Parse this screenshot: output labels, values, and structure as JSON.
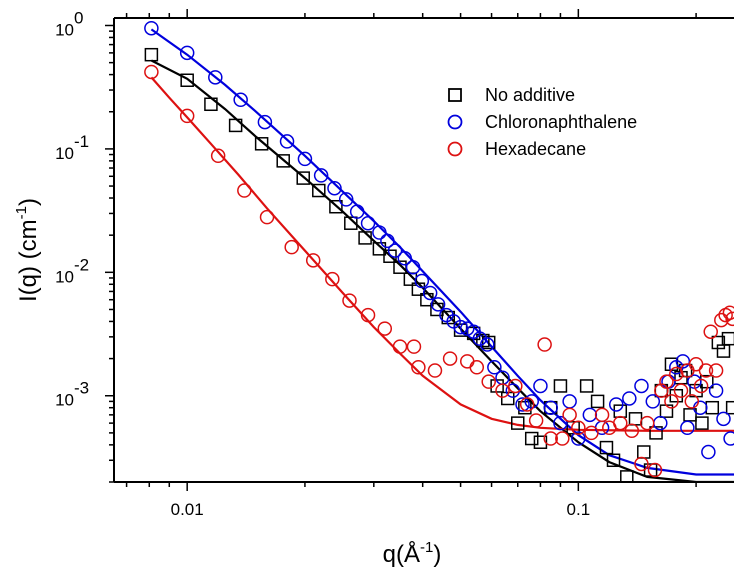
{
  "chart_data": {
    "type": "scatter",
    "title": "",
    "xlabel_base": "q(Å",
    "xlabel_sup": "-1",
    "xlabel_end": ")",
    "ylabel_base": "I(q) (cm",
    "ylabel_sup": "-1",
    "ylabel_end": ")",
    "x_scale": "log",
    "y_scale": "log",
    "xlim": [
      0.0065,
      0.25
    ],
    "ylim": [
      0.0002,
      1.15
    ],
    "x_ticks": [
      {
        "value": 0.01,
        "label": "0.01"
      },
      {
        "value": 0.1,
        "label": "0.1"
      }
    ],
    "y_ticks": [
      {
        "value": 0.001,
        "base": "10",
        "exp": "-3"
      },
      {
        "value": 0.01,
        "base": "10",
        "exp": "-2"
      },
      {
        "value": 0.1,
        "base": "10",
        "exp": "-1"
      },
      {
        "value": 1,
        "base": "10",
        "exp": "0"
      }
    ],
    "grid": false,
    "legend_position": "top-right",
    "series": [
      {
        "name": "No additive",
        "color": "#000000",
        "marker": "square",
        "points": [
          [
            0.0081,
            0.58
          ],
          [
            0.01,
            0.36
          ],
          [
            0.0115,
            0.23
          ],
          [
            0.0133,
            0.155
          ],
          [
            0.0155,
            0.11
          ],
          [
            0.0176,
            0.08
          ],
          [
            0.0198,
            0.058
          ],
          [
            0.0217,
            0.046
          ],
          [
            0.024,
            0.034
          ],
          [
            0.0262,
            0.025
          ],
          [
            0.0285,
            0.019
          ],
          [
            0.031,
            0.0155
          ],
          [
            0.033,
            0.0135
          ],
          [
            0.035,
            0.011
          ],
          [
            0.0372,
            0.0088
          ],
          [
            0.039,
            0.0073
          ],
          [
            0.041,
            0.006
          ],
          [
            0.0435,
            0.005
          ],
          [
            0.0465,
            0.0043
          ],
          [
            0.05,
            0.0034
          ],
          [
            0.054,
            0.0032
          ],
          [
            0.057,
            0.0028
          ],
          [
            0.059,
            0.0027
          ],
          [
            0.062,
            0.0012
          ],
          [
            0.066,
            0.00095
          ],
          [
            0.07,
            0.0006
          ],
          [
            0.073,
            0.0008
          ],
          [
            0.076,
            0.00045
          ],
          [
            0.08,
            0.00042
          ],
          [
            0.085,
            0.0008
          ],
          [
            0.09,
            0.0012
          ],
          [
            0.097,
            0.00055
          ],
          [
            0.105,
            0.0012
          ],
          [
            0.112,
            0.0009
          ],
          [
            0.118,
            0.00038
          ],
          [
            0.123,
            0.0003
          ],
          [
            0.128,
            0.00075
          ],
          [
            0.133,
            0.00022
          ],
          [
            0.14,
            0.00065
          ],
          [
            0.147,
            0.00035
          ],
          [
            0.153,
            0.00025
          ],
          [
            0.158,
            0.0005
          ],
          [
            0.163,
            0.0011
          ],
          [
            0.168,
            0.00075
          ],
          [
            0.173,
            0.0018
          ],
          [
            0.178,
            0.001
          ],
          [
            0.183,
            0.0014
          ],
          [
            0.188,
            0.0016
          ],
          [
            0.193,
            0.0007
          ],
          [
            0.2,
            0.0011
          ],
          [
            0.207,
            0.0006
          ],
          [
            0.213,
            0.0013
          ],
          [
            0.22,
            0.0008
          ],
          [
            0.228,
            0.0027
          ],
          [
            0.235,
            0.0023
          ],
          [
            0.242,
            0.0029
          ],
          [
            0.248,
            0.0008
          ]
        ],
        "fit": [
          [
            0.0081,
            0.52
          ],
          [
            0.01,
            0.37
          ],
          [
            0.0125,
            0.21
          ],
          [
            0.015,
            0.125
          ],
          [
            0.02,
            0.058
          ],
          [
            0.025,
            0.031
          ],
          [
            0.03,
            0.018
          ],
          [
            0.035,
            0.0115
          ],
          [
            0.04,
            0.0075
          ],
          [
            0.05,
            0.0035
          ],
          [
            0.06,
            0.0019
          ],
          [
            0.07,
            0.00115
          ],
          [
            0.08,
            0.00075
          ],
          [
            0.1,
            0.00042
          ],
          [
            0.12,
            0.00029
          ],
          [
            0.15,
            0.00022
          ],
          [
            0.2,
            0.0002
          ],
          [
            0.25,
            0.0002
          ]
        ]
      },
      {
        "name": "Chloronaphthalene",
        "color": "#0000dd",
        "marker": "circle",
        "points": [
          [
            0.0081,
            0.95
          ],
          [
            0.01,
            0.6
          ],
          [
            0.0118,
            0.38
          ],
          [
            0.0137,
            0.25
          ],
          [
            0.0158,
            0.165
          ],
          [
            0.018,
            0.115
          ],
          [
            0.02,
            0.083
          ],
          [
            0.022,
            0.061
          ],
          [
            0.0238,
            0.048
          ],
          [
            0.0255,
            0.039
          ],
          [
            0.0272,
            0.031
          ],
          [
            0.029,
            0.025
          ],
          [
            0.031,
            0.021
          ],
          [
            0.0325,
            0.018
          ],
          [
            0.034,
            0.015
          ],
          [
            0.036,
            0.013
          ],
          [
            0.0378,
            0.011
          ],
          [
            0.0398,
            0.0085
          ],
          [
            0.0418,
            0.0068
          ],
          [
            0.0438,
            0.0055
          ],
          [
            0.046,
            0.0045
          ],
          [
            0.048,
            0.004
          ],
          [
            0.05,
            0.0036
          ],
          [
            0.052,
            0.0035
          ],
          [
            0.054,
            0.0033
          ],
          [
            0.056,
            0.0029
          ],
          [
            0.0585,
            0.0026
          ],
          [
            0.061,
            0.0017
          ],
          [
            0.064,
            0.0014
          ],
          [
            0.068,
            0.0011
          ],
          [
            0.072,
            0.00085
          ],
          [
            0.076,
            0.0009
          ],
          [
            0.08,
            0.0012
          ],
          [
            0.085,
            0.0008
          ],
          [
            0.09,
            0.0006
          ],
          [
            0.095,
            0.0009
          ],
          [
            0.1,
            0.00045
          ],
          [
            0.107,
            0.0007
          ],
          [
            0.115,
            0.00055
          ],
          [
            0.125,
            0.00085
          ],
          [
            0.135,
            0.00095
          ],
          [
            0.145,
            0.0012
          ],
          [
            0.155,
            0.0009
          ],
          [
            0.162,
            0.0006
          ],
          [
            0.17,
            0.0013
          ],
          [
            0.178,
            0.0017
          ],
          [
            0.185,
            0.0019
          ],
          [
            0.19,
            0.00055
          ],
          [
            0.198,
            0.0013
          ],
          [
            0.205,
            0.0008
          ],
          [
            0.215,
            0.00035
          ],
          [
            0.225,
            0.0011
          ],
          [
            0.235,
            0.00065
          ],
          [
            0.245,
            0.00045
          ]
        ],
        "fit": [
          [
            0.0081,
            0.93
          ],
          [
            0.01,
            0.58
          ],
          [
            0.0125,
            0.33
          ],
          [
            0.015,
            0.2
          ],
          [
            0.02,
            0.088
          ],
          [
            0.025,
            0.045
          ],
          [
            0.03,
            0.026
          ],
          [
            0.035,
            0.016
          ],
          [
            0.04,
            0.0102
          ],
          [
            0.05,
            0.0048
          ],
          [
            0.06,
            0.0025
          ],
          [
            0.07,
            0.00145
          ],
          [
            0.08,
            0.00092
          ],
          [
            0.1,
            0.00048
          ],
          [
            0.12,
            0.00033
          ],
          [
            0.15,
            0.00026
          ],
          [
            0.2,
            0.00023
          ],
          [
            0.25,
            0.00023
          ]
        ]
      },
      {
        "name": "Hexadecane",
        "color": "#dd1111",
        "marker": "circle",
        "points": [
          [
            0.0081,
            0.42
          ],
          [
            0.01,
            0.185
          ],
          [
            0.012,
            0.088
          ],
          [
            0.014,
            0.046
          ],
          [
            0.016,
            0.028
          ],
          [
            0.0185,
            0.016
          ],
          [
            0.021,
            0.0125
          ],
          [
            0.0235,
            0.0088
          ],
          [
            0.026,
            0.0059
          ],
          [
            0.029,
            0.0045
          ],
          [
            0.032,
            0.0035
          ],
          [
            0.035,
            0.0025
          ],
          [
            0.038,
            0.0025
          ],
          [
            0.039,
            0.0017
          ],
          [
            0.043,
            0.0016
          ],
          [
            0.047,
            0.002
          ],
          [
            0.052,
            0.0019
          ],
          [
            0.055,
            0.0017
          ],
          [
            0.059,
            0.0013
          ],
          [
            0.064,
            0.0011
          ],
          [
            0.069,
            0.0012
          ],
          [
            0.074,
            0.00085
          ],
          [
            0.078,
            0.00063
          ],
          [
            0.082,
            0.0026
          ],
          [
            0.085,
            0.00045
          ],
          [
            0.091,
            0.00045
          ],
          [
            0.095,
            0.0007
          ],
          [
            0.1,
            0.00055
          ],
          [
            0.108,
            0.0005
          ],
          [
            0.115,
            0.0007
          ],
          [
            0.12,
            0.00055
          ],
          [
            0.128,
            0.0006
          ],
          [
            0.137,
            0.00052
          ],
          [
            0.145,
            0.00028
          ],
          [
            0.15,
            0.0006
          ],
          [
            0.157,
            0.00025
          ],
          [
            0.163,
            0.0011
          ],
          [
            0.168,
            0.0013
          ],
          [
            0.173,
            0.0009
          ],
          [
            0.178,
            0.0015
          ],
          [
            0.183,
            0.0011
          ],
          [
            0.19,
            0.0016
          ],
          [
            0.195,
            0.0009
          ],
          [
            0.2,
            0.0018
          ],
          [
            0.206,
            0.0012
          ],
          [
            0.212,
            0.0016
          ],
          [
            0.218,
            0.0033
          ],
          [
            0.225,
            0.0016
          ],
          [
            0.232,
            0.0041
          ],
          [
            0.238,
            0.0045
          ],
          [
            0.244,
            0.0047
          ],
          [
            0.248,
            0.0042
          ]
        ],
        "fit": [
          [
            0.0081,
            0.38
          ],
          [
            0.009,
            0.26
          ],
          [
            0.01,
            0.18
          ],
          [
            0.0115,
            0.11
          ],
          [
            0.0135,
            0.062
          ],
          [
            0.016,
            0.033
          ],
          [
            0.02,
            0.015
          ],
          [
            0.025,
            0.0068
          ],
          [
            0.03,
            0.0036
          ],
          [
            0.035,
            0.0022
          ],
          [
            0.04,
            0.00145
          ],
          [
            0.05,
            0.00085
          ],
          [
            0.06,
            0.00065
          ],
          [
            0.07,
            0.00058
          ],
          [
            0.08,
            0.00055
          ],
          [
            0.1,
            0.00053
          ],
          [
            0.15,
            0.00052
          ],
          [
            0.25,
            0.00052
          ]
        ]
      }
    ]
  }
}
